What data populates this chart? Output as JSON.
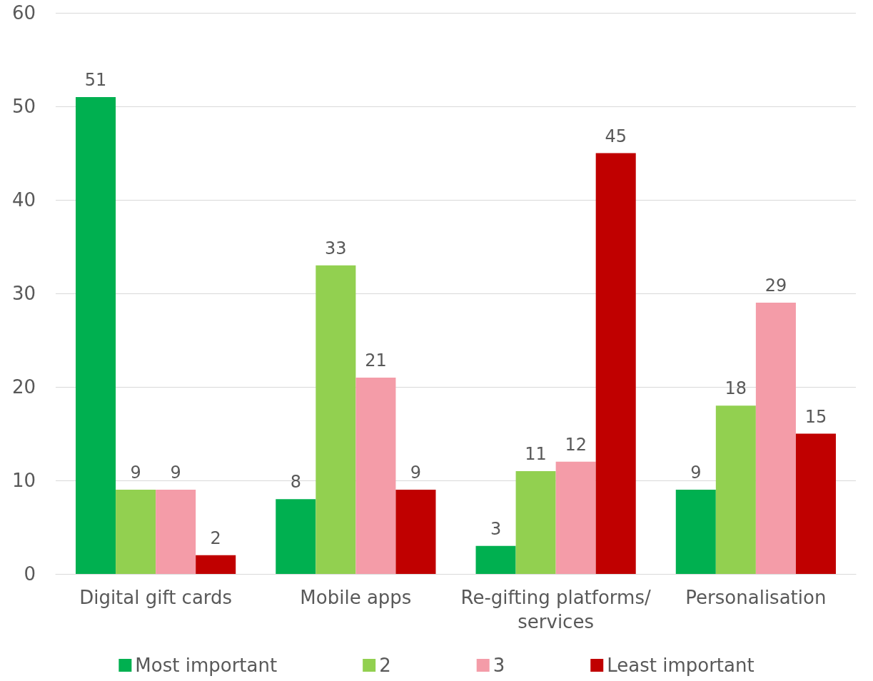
{
  "chart_data": {
    "type": "bar",
    "categories": [
      "Digital gift cards",
      "Mobile apps",
      "Re-gifting platforms/services",
      "Personalisation"
    ],
    "series": [
      {
        "name": "Most important",
        "color": "#00b050",
        "values": [
          51,
          8,
          3,
          9
        ]
      },
      {
        "name": "2",
        "color": "#92d050",
        "values": [
          9,
          33,
          11,
          18
        ]
      },
      {
        "name": "3",
        "color": "#f49ca8",
        "values": [
          9,
          21,
          12,
          29
        ]
      },
      {
        "name": "Least important",
        "color": "#c00000",
        "values": [
          2,
          9,
          45,
          15
        ]
      }
    ],
    "ylim": [
      0,
      60
    ],
    "yticks": [
      0,
      10,
      20,
      30,
      40,
      50,
      60
    ],
    "grid": "y",
    "legend": "bottom",
    "data_labels": true
  }
}
